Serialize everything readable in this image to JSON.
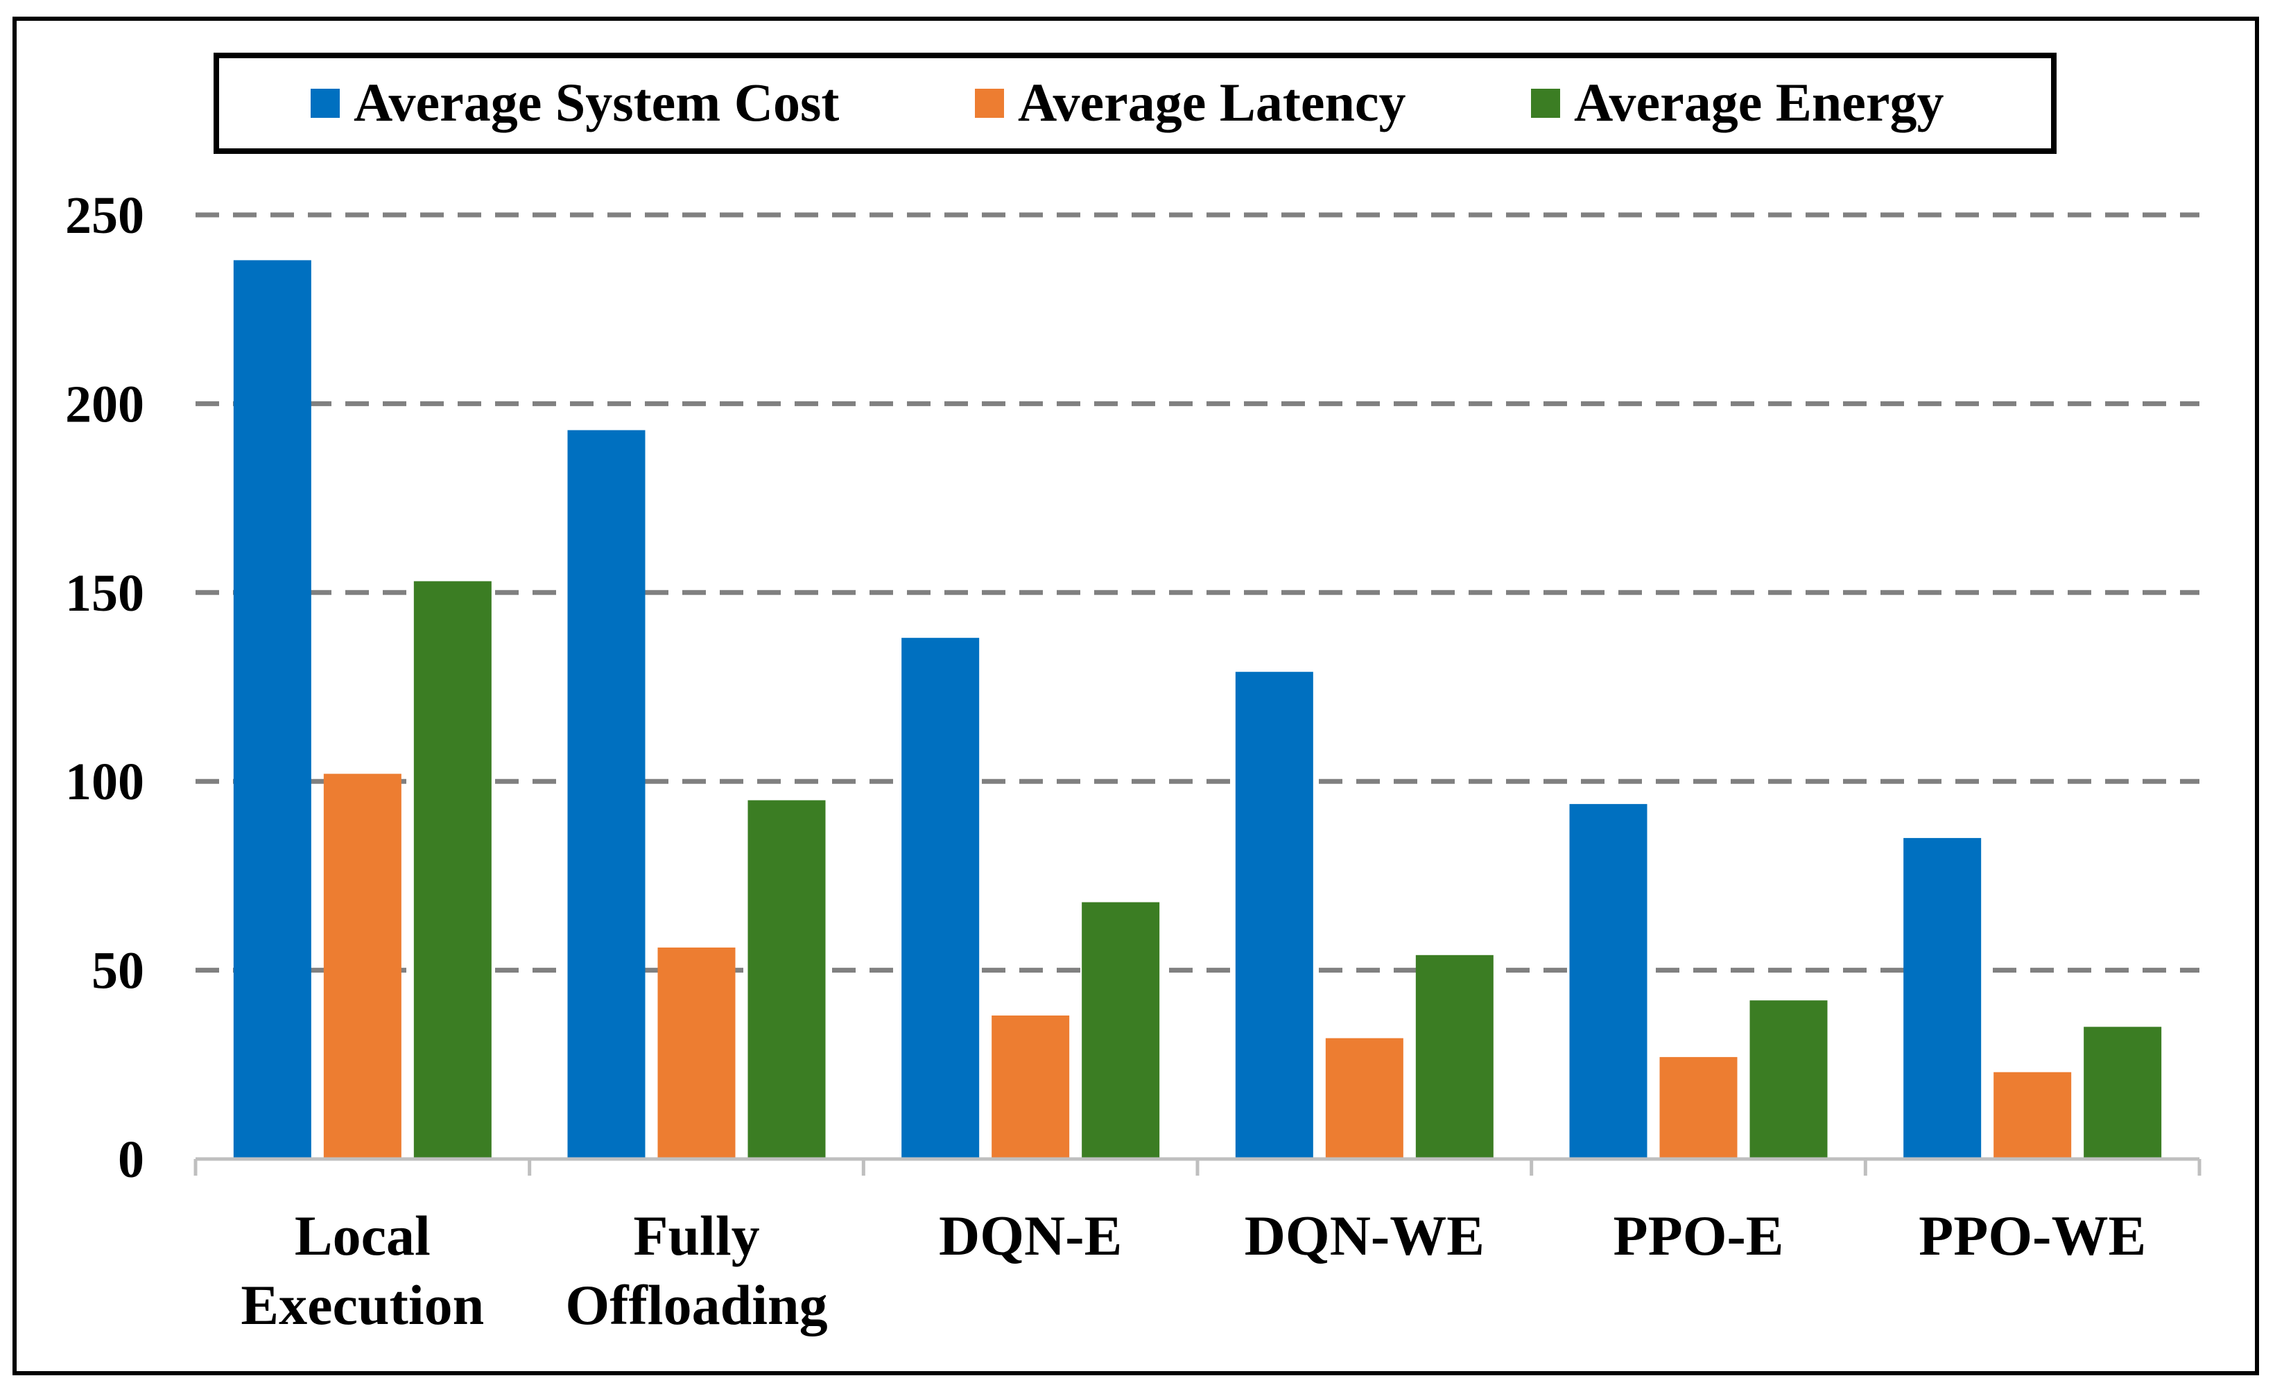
{
  "chart_data": {
    "type": "bar",
    "categories": [
      [
        "Local",
        "Execution"
      ],
      [
        "Fully",
        "Offloading"
      ],
      [
        "DQN-E"
      ],
      [
        "DQN-WE"
      ],
      [
        "PPO-E"
      ],
      [
        "PPO-WE"
      ]
    ],
    "series": [
      {
        "name": "Average System Cost",
        "color": "#0070C0",
        "values": [
          238,
          193,
          138,
          129,
          94,
          85
        ]
      },
      {
        "name": "Average Latency",
        "color": "#ED7D31",
        "values": [
          102,
          56,
          38,
          32,
          27,
          23
        ]
      },
      {
        "name": "Average Energy",
        "color": "#3B7D23",
        "values": [
          153,
          95,
          68,
          54,
          42,
          35
        ]
      }
    ],
    "yticks": [
      "0",
      "50",
      "100",
      "150",
      "200",
      "250"
    ],
    "ylim": [
      0,
      250
    ],
    "grid": "horizontal dashed",
    "legend_position": "top"
  }
}
